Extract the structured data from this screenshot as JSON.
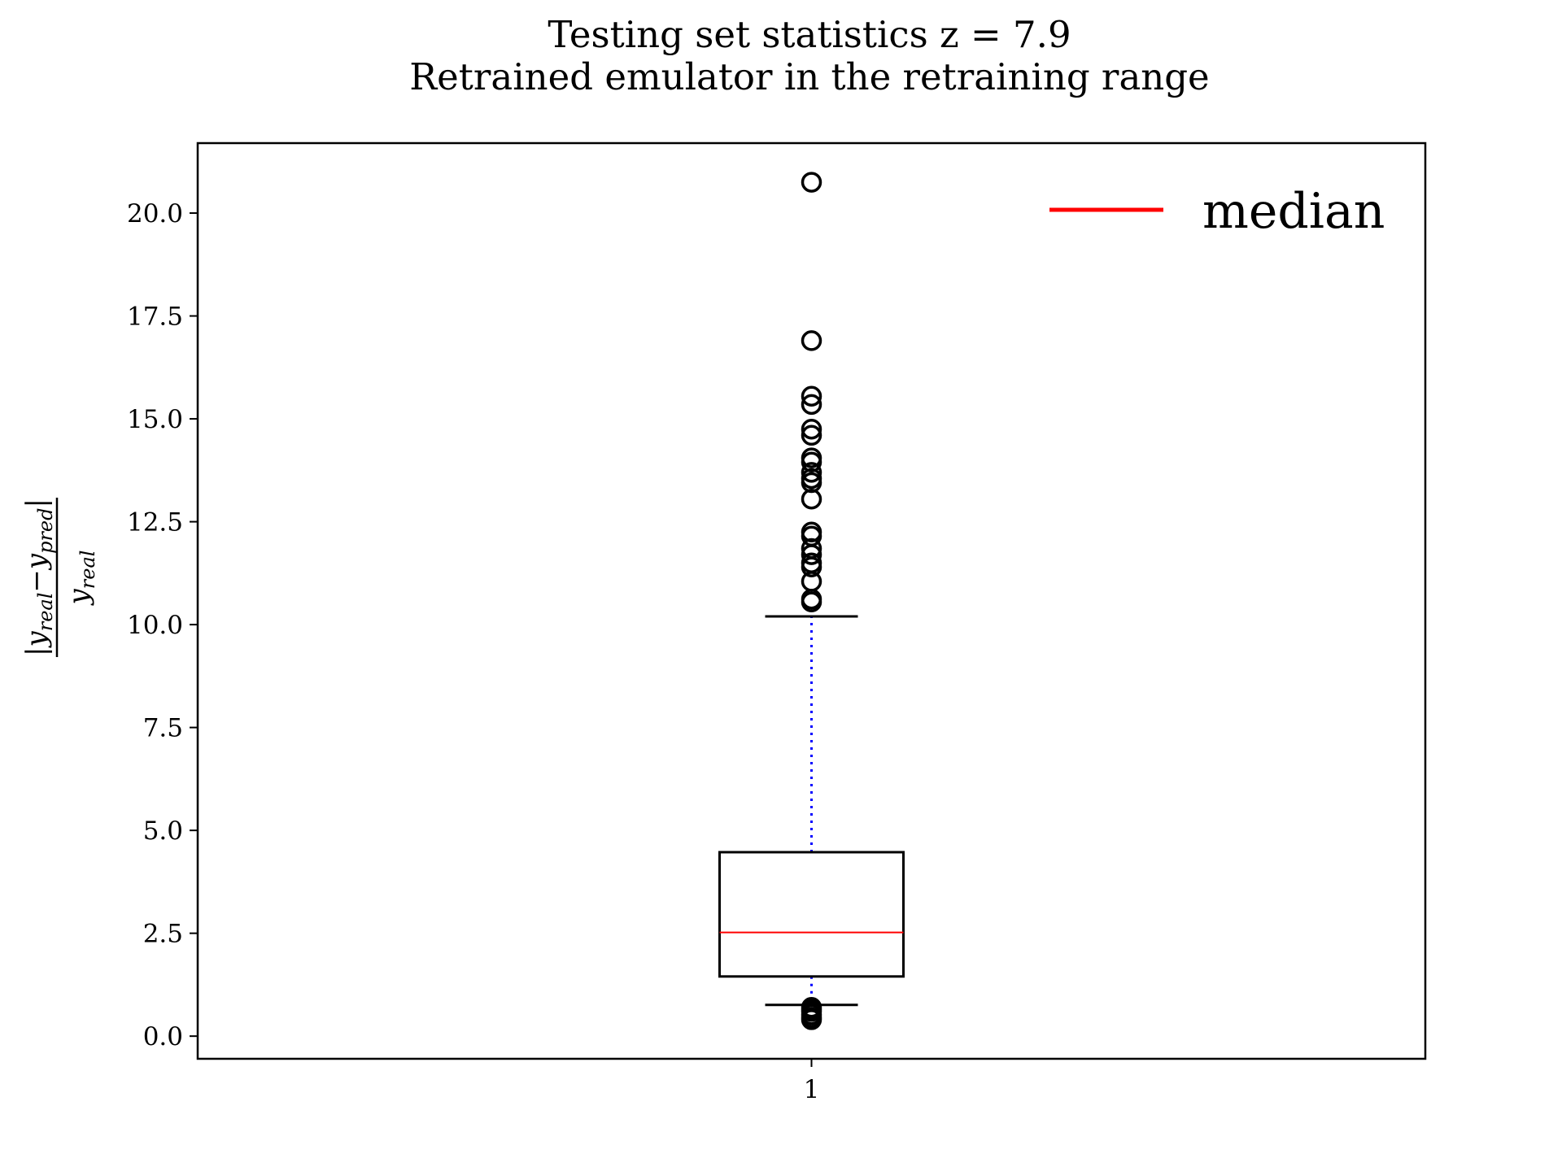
{
  "chart_data": {
    "type": "box",
    "title": "Testing set statistics z = 7.9",
    "subtitle": "Retrained emulator in the retraining range",
    "ylabel": {
      "numerator_left": "y",
      "numerator_left_sub": "real",
      "numerator_minus": "−",
      "numerator_right": "y",
      "numerator_right_sub": "pred",
      "denominator": "y",
      "denominator_sub": "real"
    },
    "categories": [
      "1"
    ],
    "ylim": [
      -0.55,
      21.7
    ],
    "yticks": [
      0.0,
      2.5,
      5.0,
      7.5,
      10.0,
      12.5,
      15.0,
      17.5,
      20.0
    ],
    "ytick_labels": [
      "0.0",
      "2.5",
      "5.0",
      "7.5",
      "10.0",
      "12.5",
      "15.0",
      "17.5",
      "20.0"
    ],
    "legend": {
      "label": "median",
      "color": "#ff0000",
      "position": "top-right"
    },
    "grid": false,
    "boxes": [
      {
        "category": "1",
        "q1": 1.45,
        "median": 2.52,
        "q3": 4.47,
        "whisker_low": 0.76,
        "whisker_high": 10.2,
        "outliers_high": [
          10.55,
          10.62,
          11.05,
          11.4,
          11.5,
          11.7,
          11.85,
          12.15,
          12.25,
          13.05,
          13.45,
          13.55,
          13.7,
          13.95,
          14.05,
          14.6,
          14.75,
          15.35,
          15.55,
          16.9,
          20.75
        ],
        "outliers_low": [
          0.4,
          0.45,
          0.52,
          0.6,
          0.65,
          0.7
        ]
      }
    ],
    "colors": {
      "median": "#ff0000",
      "whisker": "#0000ff",
      "box": "#000000",
      "outlier": "#000000"
    }
  }
}
